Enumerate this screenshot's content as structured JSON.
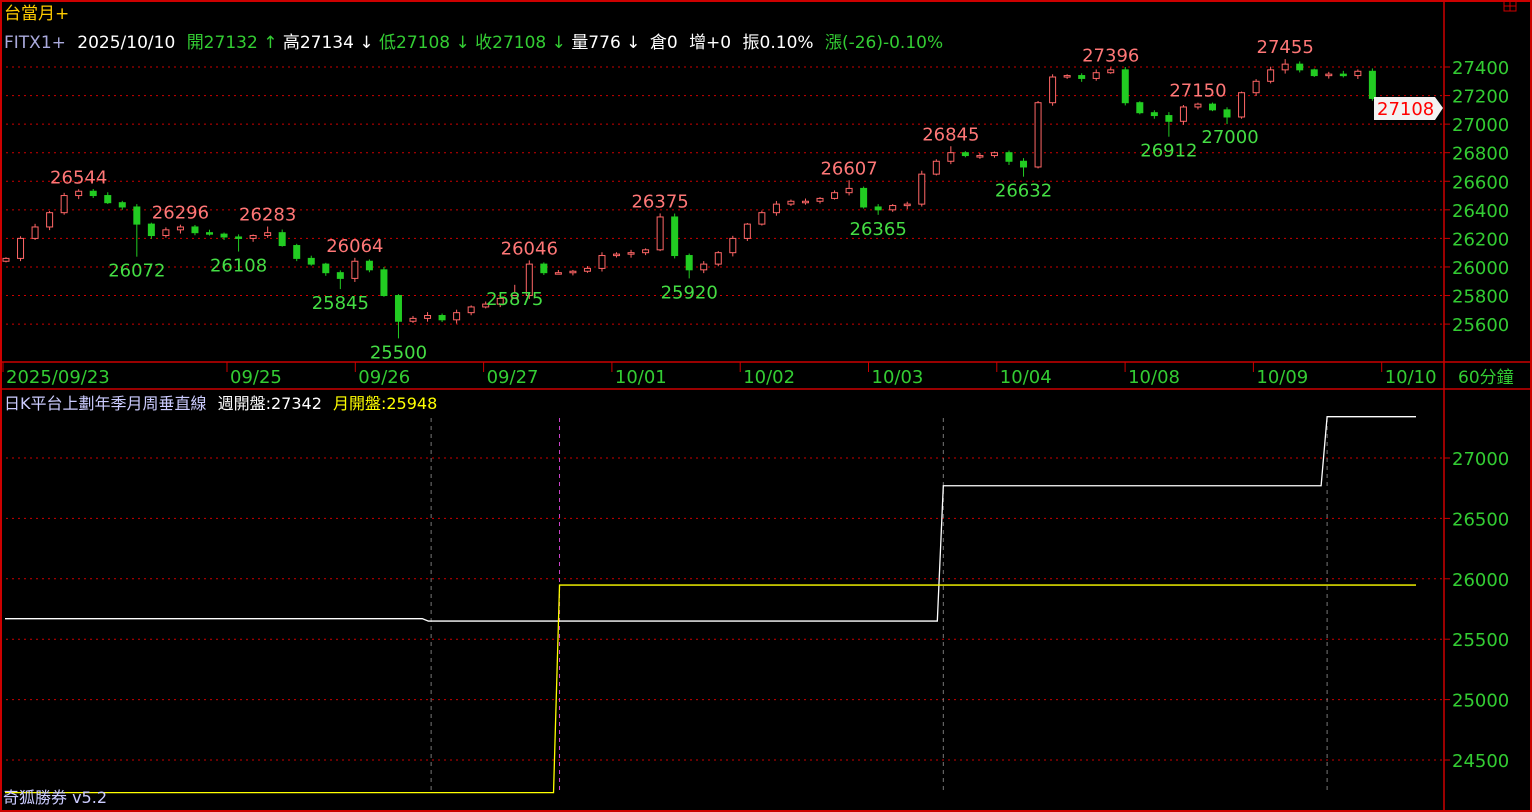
{
  "header": {
    "title": "台當月+",
    "symbol": "FITX1+",
    "date": "2025/10/10",
    "open": "開27132",
    "open_arrow": "↑",
    "high": "高27134",
    "high_arrow": "↓",
    "low": "低27108",
    "low_arrow": "↓",
    "close": "收27108",
    "close_arrow": "↓",
    "volume": "量776",
    "volume_arrow": "↓",
    "oi": "倉0",
    "oi_change": "增+0",
    "amplitude": "振0.10%",
    "change": "漲(-26)-0.10%"
  },
  "colors": {
    "up": "#ff6666",
    "down": "#22cc22",
    "axis_text": "#33cc33",
    "border": "#cc0000",
    "weekly": "#ffffff",
    "monthly": "#ffff00"
  },
  "timeframe": "60分鐘",
  "current_price": "27108",
  "lower_panel": {
    "title": "日K平台上劃年季月周垂直線",
    "weekly_open": "週開盤:27342",
    "monthly_open": "月開盤:25948"
  },
  "watermark": "奇狐勝券 v5.2",
  "chart_data": [
    {
      "type": "candlestick",
      "ylim": [
        25400,
        27600
      ],
      "yticks": [
        "27400",
        "27200",
        "27000",
        "26800",
        "26600",
        "26400",
        "26200",
        "26000",
        "25800",
        "25600"
      ],
      "xticks": [
        "2025/09/23",
        "09/25",
        "09/26",
        "09/27",
        "10/01",
        "10/02",
        "10/03",
        "10/04",
        "10/08",
        "10/09",
        "10/10"
      ],
      "closes": [
        26060,
        26200,
        26280,
        26380,
        26500,
        26530,
        26500,
        26450,
        26420,
        26300,
        26220,
        26260,
        26280,
        26240,
        26230,
        26210,
        26200,
        26220,
        26240,
        26150,
        26060,
        26020,
        25960,
        25920,
        26040,
        25980,
        25800,
        25620,
        25640,
        25660,
        25630,
        25680,
        25720,
        25740,
        25780,
        25800,
        26020,
        25960,
        25960,
        25970,
        25990,
        26080,
        26090,
        26100,
        26120,
        26350,
        26080,
        25980,
        26020,
        26100,
        26200,
        26300,
        26380,
        26440,
        26460,
        26460,
        26480,
        26520,
        26550,
        26420,
        26400,
        26430,
        26440,
        26650,
        26740,
        26800,
        26780,
        26780,
        26800,
        26740,
        26700,
        27150,
        27330,
        27340,
        27320,
        27360,
        27380,
        27150,
        27080,
        27060,
        27020,
        27120,
        27140,
        27100,
        27050,
        27220,
        27300,
        27380,
        27420,
        27380,
        27340,
        27350,
        27340,
        27370,
        27180,
        27150,
        27110,
        27108
      ],
      "annotations": [
        {
          "bar": 5,
          "value": "26544",
          "kind": "high"
        },
        {
          "bar": 9,
          "value": "26072",
          "kind": "low"
        },
        {
          "bar": 12,
          "value": "26296",
          "kind": "high"
        },
        {
          "bar": 16,
          "value": "26108",
          "kind": "low"
        },
        {
          "bar": 18,
          "value": "26283",
          "kind": "high"
        },
        {
          "bar": 23,
          "value": "25845",
          "kind": "low"
        },
        {
          "bar": 24,
          "value": "26064",
          "kind": "high"
        },
        {
          "bar": 27,
          "value": "25500",
          "kind": "low"
        },
        {
          "bar": 35,
          "value": "25875",
          "kind": "low"
        },
        {
          "bar": 36,
          "value": "26046",
          "kind": "high"
        },
        {
          "bar": 45,
          "value": "26375",
          "kind": "high"
        },
        {
          "bar": 47,
          "value": "25920",
          "kind": "low"
        },
        {
          "bar": 58,
          "value": "26607",
          "kind": "high"
        },
        {
          "bar": 60,
          "value": "26365",
          "kind": "low"
        },
        {
          "bar": 65,
          "value": "26845",
          "kind": "high"
        },
        {
          "bar": 70,
          "value": "26632",
          "kind": "low"
        },
        {
          "bar": 76,
          "value": "27396",
          "kind": "high"
        },
        {
          "bar": 80,
          "value": "26912",
          "kind": "low"
        },
        {
          "bar": 82,
          "value": "27150",
          "kind": "high"
        },
        {
          "bar": 84,
          "value": "27000",
          "kind": "low"
        },
        {
          "bar": 88,
          "value": "27455",
          "kind": "high"
        }
      ]
    },
    {
      "type": "line",
      "ylim": [
        24250,
        27500
      ],
      "yticks": [
        "27000",
        "26500",
        "26000",
        "25500",
        "25000",
        "24500"
      ],
      "series": [
        {
          "name": "週開盤",
          "color": "#ffffff",
          "steps": [
            [
              0,
              25670
            ],
            [
              0.3,
              25650
            ],
            [
              0.665,
              26770
            ],
            [
              0.937,
              27342
            ],
            [
              1,
              27342
            ]
          ]
        },
        {
          "name": "月開盤",
          "color": "#ffff00",
          "steps": [
            [
              0,
              24230
            ],
            [
              0.393,
              25948
            ],
            [
              1,
              25948
            ]
          ]
        }
      ],
      "vertical_markers": [
        0.302,
        0.393,
        0.665,
        0.937
      ]
    }
  ]
}
